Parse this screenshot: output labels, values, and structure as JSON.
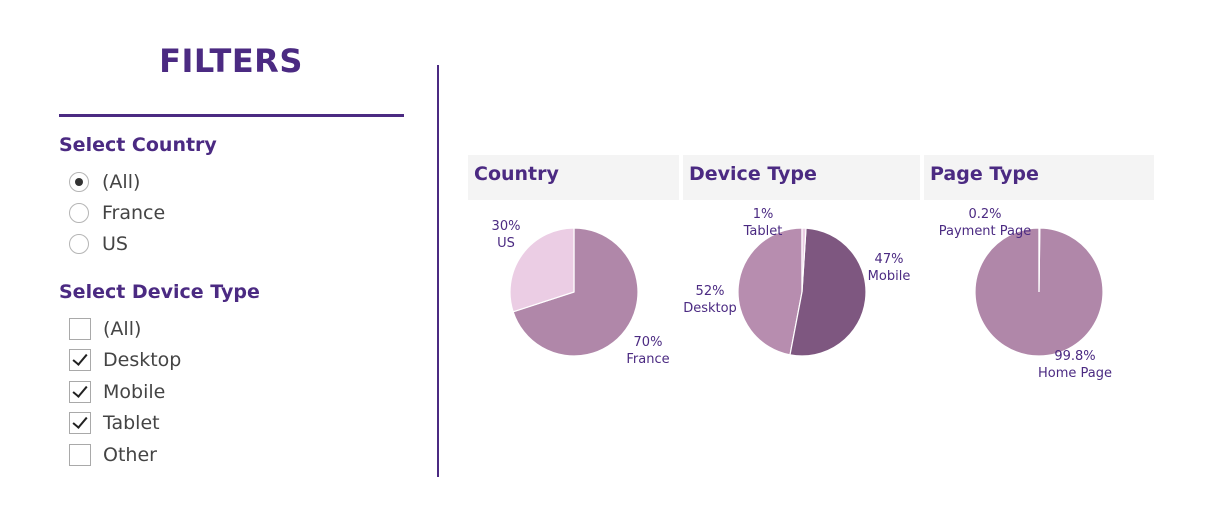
{
  "filters": {
    "title": "FILTERS",
    "country": {
      "label": "Select Country",
      "options": [
        {
          "label": "(All)",
          "selected": true
        },
        {
          "label": "France",
          "selected": false
        },
        {
          "label": "US",
          "selected": false
        }
      ]
    },
    "device": {
      "label": "Select Device Type",
      "options": [
        {
          "label": "(All)",
          "checked": false
        },
        {
          "label": "Desktop",
          "checked": true
        },
        {
          "label": "Mobile",
          "checked": true
        },
        {
          "label": "Tablet",
          "checked": true
        },
        {
          "label": "Other",
          "checked": false
        }
      ]
    }
  },
  "colors": {
    "accent": "#4b2a82",
    "header_bg": "#f4f4f4"
  },
  "chart_data": [
    {
      "type": "pie",
      "title": "Country",
      "slices": [
        {
          "label": "France",
          "pct_label": "70%",
          "value": 70,
          "color": "#b087a9"
        },
        {
          "label": "US",
          "pct_label": "30%",
          "value": 30,
          "color": "#ebcde4"
        }
      ]
    },
    {
      "type": "pie",
      "title": "Device Type",
      "slices": [
        {
          "label": "Mobile",
          "pct_label": "47%",
          "value": 47,
          "color": "#b78daf"
        },
        {
          "label": "Desktop",
          "pct_label": "52%",
          "value": 52,
          "color": "#7e5780"
        },
        {
          "label": "Tablet",
          "pct_label": "1%",
          "value": 1,
          "color": "#ebcde4"
        }
      ]
    },
    {
      "type": "pie",
      "title": "Page Type",
      "slices": [
        {
          "label": "Home Page",
          "pct_label": "99.8%",
          "value": 99.8,
          "color": "#b087a9"
        },
        {
          "label": "Payment Page",
          "pct_label": "0.2%",
          "value": 0.2,
          "color": "#ebcde4"
        }
      ]
    }
  ]
}
